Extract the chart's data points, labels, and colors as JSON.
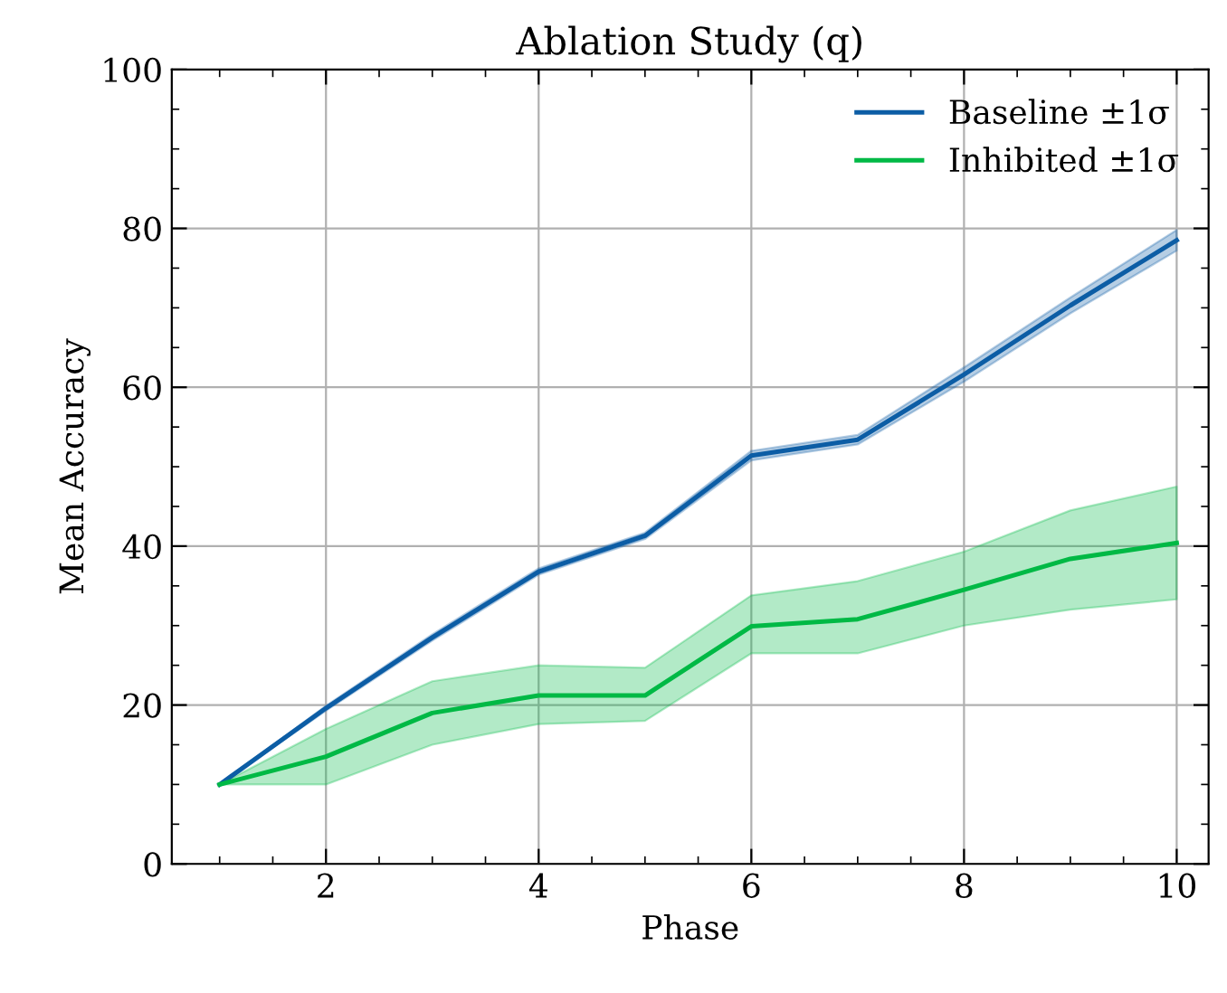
{
  "chart_data": {
    "type": "line",
    "title": "Ablation Study (q)",
    "xlabel": "Phase",
    "ylabel": "Mean Accuracy",
    "xlim": [
      0.55,
      10.3
    ],
    "xticks": [
      2,
      4,
      6,
      8,
      10
    ],
    "ylim": [
      0,
      100
    ],
    "yticks": [
      0,
      20,
      40,
      60,
      80,
      100
    ],
    "grid": true,
    "legend": "top right",
    "marker": "none",
    "line_style": "solid",
    "series": [
      {
        "name": "Baseline ±1σ",
        "color": "#0c5da5",
        "x": [
          1,
          2,
          3,
          4,
          5,
          6,
          7,
          8,
          9,
          10
        ],
        "values": [
          10,
          19.6,
          28.5,
          36.8,
          41.3,
          51.4,
          53.4,
          61.6,
          70.3,
          78.5
        ],
        "lower": [
          10,
          19.3,
          28.1,
          36.4,
          40.9,
          50.8,
          52.8,
          60.7,
          69.3,
          77.2
        ],
        "upper": [
          10,
          19.9,
          28.9,
          37.2,
          41.7,
          52.0,
          54.0,
          62.5,
          71.3,
          79.8
        ]
      },
      {
        "name": "Inhibited ±1σ",
        "color": "#00b945",
        "x": [
          1,
          2,
          3,
          4,
          5,
          6,
          7,
          8,
          9,
          10
        ],
        "values": [
          10,
          13.5,
          19,
          21.2,
          21.2,
          29.9,
          30.8,
          34.5,
          38.4,
          40.4
        ],
        "lower": [
          10,
          10,
          15,
          17.6,
          18,
          26.5,
          26.5,
          30,
          32,
          33.3
        ],
        "upper": [
          10,
          17,
          23,
          25,
          24.7,
          33.8,
          35.6,
          39.3,
          44.5,
          47.5
        ]
      }
    ]
  }
}
